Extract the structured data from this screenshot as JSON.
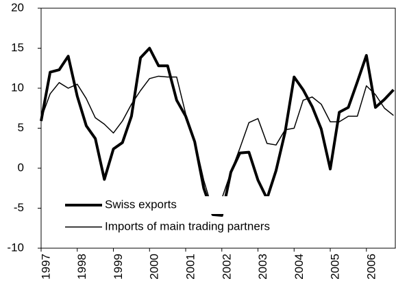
{
  "chart_data": {
    "type": "line",
    "x": [
      1997,
      1997.25,
      1997.5,
      1997.75,
      1998,
      1998.25,
      1998.5,
      1998.75,
      1999,
      1999.25,
      1999.5,
      1999.75,
      2000,
      2000.25,
      2000.5,
      2000.75,
      2001,
      2001.25,
      2001.5,
      2001.75,
      2002,
      2002.25,
      2002.5,
      2002.75,
      2003,
      2003.25,
      2003.5,
      2003.75,
      2004,
      2004.25,
      2004.5,
      2004.75,
      2005,
      2005.25,
      2005.5,
      2005.75,
      2006,
      2006.25,
      2006.5,
      2006.75
    ],
    "series": [
      {
        "name": "Swiss exports",
        "color": "#000000",
        "width": 4,
        "values": [
          5.9,
          12.0,
          12.3,
          14.0,
          9.0,
          5.3,
          3.7,
          -1.4,
          2.4,
          3.2,
          6.5,
          13.8,
          15.0,
          12.8,
          12.8,
          8.5,
          6.5,
          3.3,
          -2.5,
          -5.8,
          -5.9,
          -0.5,
          1.9,
          2.0,
          -1.5,
          -3.8,
          -0.3,
          4.5,
          11.4,
          9.8,
          7.7,
          4.9,
          -0.1,
          7.0,
          7.6,
          10.8,
          14.1,
          7.6,
          8.6,
          9.8
        ]
      },
      {
        "name": "Imports of main trading partners",
        "color": "#000000",
        "width": 1.5,
        "values": [
          6.2,
          9.3,
          10.7,
          10.0,
          10.5,
          8.7,
          6.3,
          5.5,
          4.4,
          5.9,
          8.0,
          9.7,
          11.2,
          11.5,
          11.4,
          11.4,
          6.8,
          3.5,
          -1.5,
          -5.3,
          -3.8,
          -0.5,
          2.5,
          5.7,
          6.2,
          3.1,
          2.9,
          4.8,
          5.0,
          8.5,
          8.9,
          8.0,
          5.8,
          5.8,
          6.5,
          6.5,
          10.3,
          9.2,
          7.5,
          6.6
        ]
      }
    ],
    "xlim": [
      1997,
      2006.8
    ],
    "xticks": [
      1997,
      1998,
      1999,
      2000,
      2001,
      2002,
      2003,
      2004,
      2005,
      2006
    ],
    "ylim": [
      -10,
      20
    ],
    "yticks": [
      -10,
      -5,
      0,
      5,
      10,
      15,
      20
    ],
    "grid": false,
    "legend": "lower left"
  }
}
